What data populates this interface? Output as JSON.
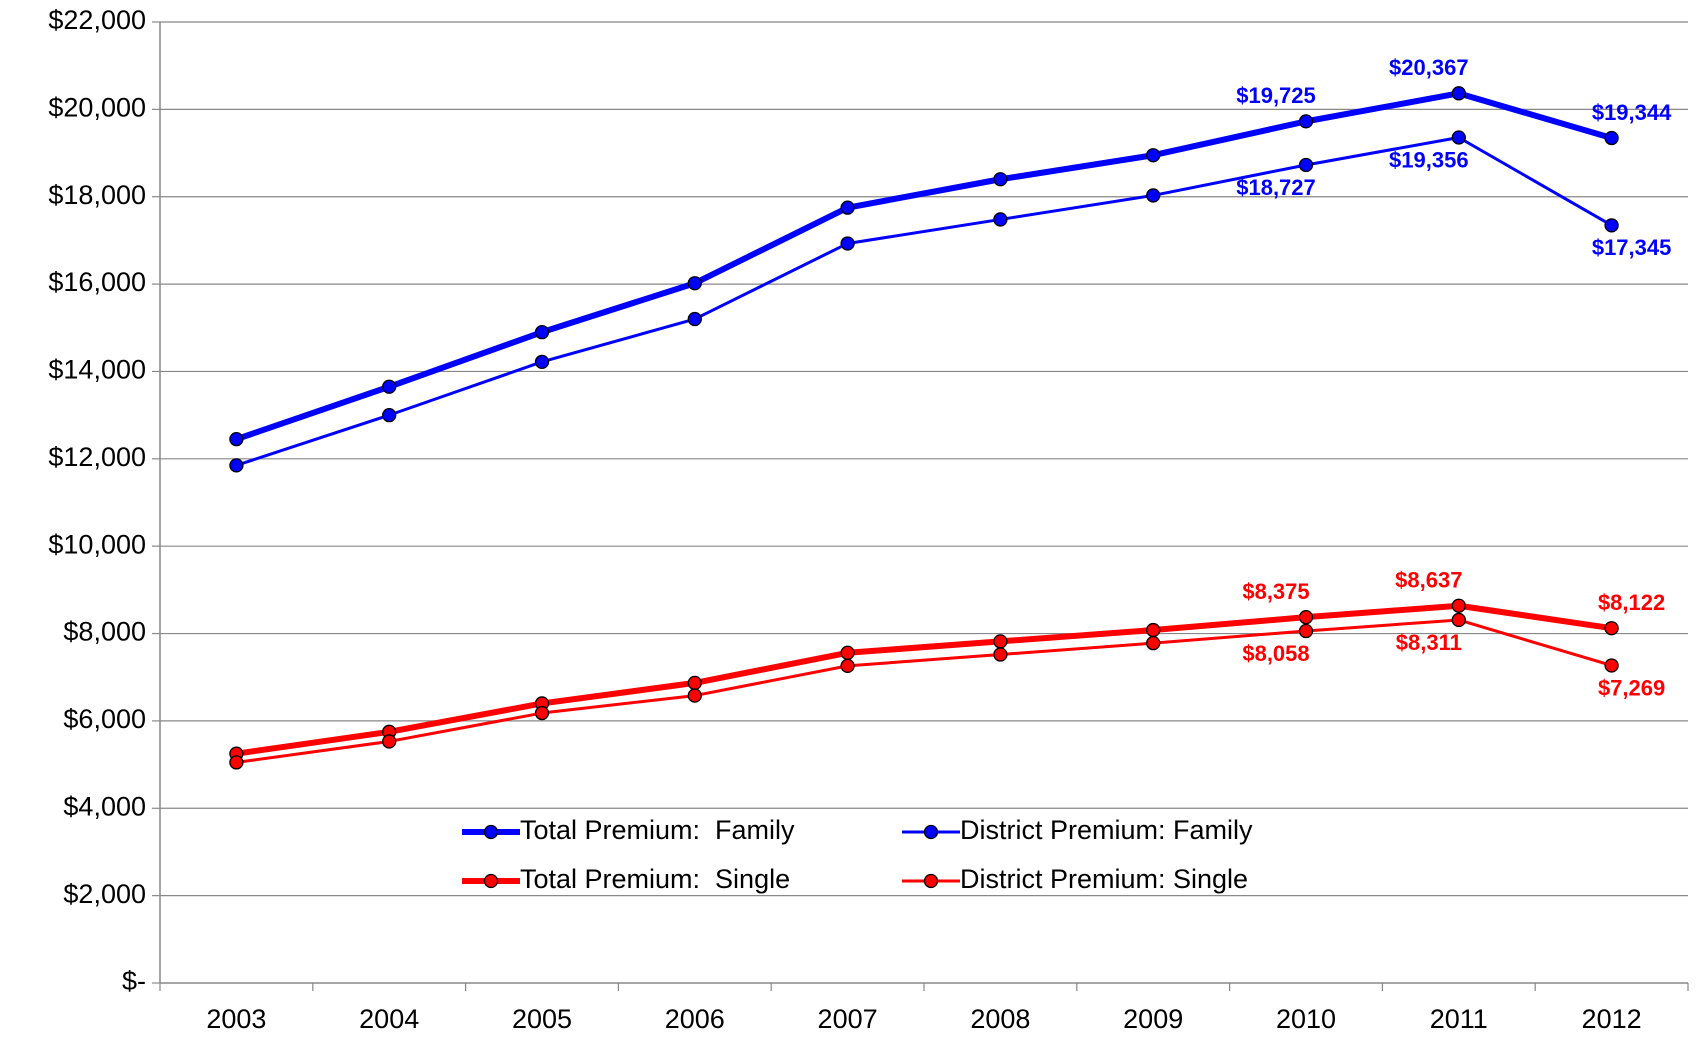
{
  "chart_data": {
    "type": "line",
    "categories": [
      "2003",
      "2004",
      "2005",
      "2006",
      "2007",
      "2008",
      "2009",
      "2010",
      "2011",
      "2012"
    ],
    "ylim": [
      0,
      22000
    ],
    "yticks": [
      {
        "value": 0,
        "label": "$-"
      },
      {
        "value": 2000,
        "label": "$2,000"
      },
      {
        "value": 4000,
        "label": "$4,000"
      },
      {
        "value": 6000,
        "label": "$6,000"
      },
      {
        "value": 8000,
        "label": "$8,000"
      },
      {
        "value": 10000,
        "label": "$10,000"
      },
      {
        "value": 12000,
        "label": "$12,000"
      },
      {
        "value": 14000,
        "label": "$14,000"
      },
      {
        "value": 16000,
        "label": "$16,000"
      },
      {
        "value": 18000,
        "label": "$18,000"
      },
      {
        "value": 20000,
        "label": "$20,000"
      },
      {
        "value": 22000,
        "label": "$22,000"
      }
    ],
    "grid": true,
    "series": [
      {
        "name": "Total Premium:  Family",
        "color": "#0000ff",
        "width": 6,
        "values": [
          12450,
          13650,
          14900,
          16020,
          17750,
          18400,
          18950,
          19725,
          20367,
          19344
        ],
        "value_labels": [
          null,
          null,
          null,
          null,
          null,
          null,
          null,
          "$19,725",
          "$20,367",
          "$19,344"
        ]
      },
      {
        "name": "District Premium: Family",
        "color": "#0000ff",
        "width": 3,
        "values": [
          11850,
          13000,
          14220,
          15200,
          16930,
          17480,
          18030,
          18727,
          19356,
          17345
        ],
        "value_labels": [
          null,
          null,
          null,
          null,
          null,
          null,
          null,
          "$18,727",
          "$19,356",
          "$17,345"
        ]
      },
      {
        "name": "Total Premium:  Single",
        "color": "#ff0000",
        "width": 6,
        "values": [
          5250,
          5750,
          6400,
          6870,
          7560,
          7820,
          8080,
          8375,
          8637,
          8122
        ],
        "value_labels": [
          null,
          null,
          null,
          null,
          null,
          null,
          null,
          "$8,375",
          "$8,637",
          "$8,122"
        ]
      },
      {
        "name": "District Premium: Single",
        "color": "#ff0000",
        "width": 3,
        "values": [
          5050,
          5530,
          6180,
          6580,
          7260,
          7520,
          7780,
          8058,
          8311,
          7269
        ],
        "value_labels": [
          null,
          null,
          null,
          null,
          null,
          null,
          null,
          "$8,058",
          "$8,311",
          "$7,269"
        ]
      }
    ]
  }
}
